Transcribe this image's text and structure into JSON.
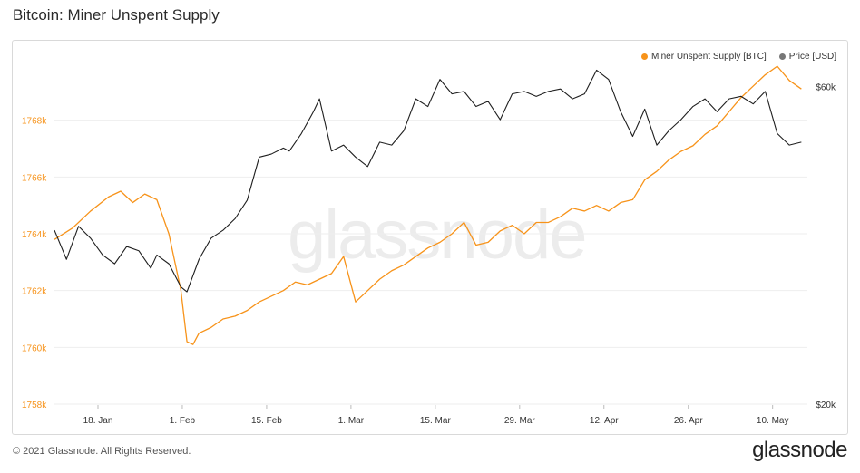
{
  "header": {
    "title": "Bitcoin: Miner Unspent Supply"
  },
  "footer": {
    "copyright": "© 2021 Glassnode. All Rights Reserved.",
    "logo": "glassnode"
  },
  "watermark": "glassnode",
  "colors": {
    "supply": "#f7931a",
    "price": "#1f1f1f",
    "grid": "#eeeeee"
  },
  "chart_data": {
    "type": "line",
    "title": "Bitcoin: Miner Unspent Supply",
    "x_ticks": [
      "18. Jan",
      "1. Feb",
      "15. Feb",
      "1. Mar",
      "15. Mar",
      "29. Mar",
      "12. Apr",
      "26. Apr",
      "10. May"
    ],
    "x_range_days": [
      0,
      125
    ],
    "y_left": {
      "ticks": [
        "1758k",
        "1760k",
        "1762k",
        "1764k",
        "1766k",
        "1768k"
      ],
      "range": [
        1758000,
        1770000
      ]
    },
    "y_right": {
      "ticks": [
        "$20k",
        "$60k"
      ],
      "range": [
        20000,
        65000
      ],
      "scale": "log"
    },
    "legend": {
      "placement": "top-right"
    },
    "series": [
      {
        "name": "Miner Unspent Supply [BTC]",
        "axis": "left",
        "color": "#f7931a",
        "x": [
          0,
          3,
          6,
          9,
          11,
          13,
          15,
          17,
          19,
          21,
          22,
          23,
          24,
          26,
          28,
          30,
          32,
          34,
          36,
          38,
          40,
          42,
          44,
          46,
          48,
          50,
          52,
          54,
          56,
          58,
          60,
          62,
          64,
          66,
          68,
          70,
          72,
          74,
          76,
          78,
          80,
          82,
          84,
          86,
          88,
          90,
          92,
          94,
          96,
          98,
          100,
          102,
          104,
          106,
          108,
          110,
          112,
          114,
          116,
          118,
          120,
          122,
          124
        ],
        "values": [
          1763800,
          1764200,
          1764800,
          1765300,
          1765500,
          1765100,
          1765400,
          1765200,
          1764000,
          1762000,
          1760200,
          1760100,
          1760500,
          1760700,
          1761000,
          1761100,
          1761300,
          1761600,
          1761800,
          1762000,
          1762300,
          1762200,
          1762400,
          1762600,
          1763200,
          1761600,
          1762000,
          1762400,
          1762700,
          1762900,
          1763200,
          1763500,
          1763700,
          1764000,
          1764400,
          1763600,
          1763700,
          1764100,
          1764300,
          1764000,
          1764400,
          1764400,
          1764600,
          1764900,
          1764800,
          1765000,
          1764800,
          1765100,
          1765200,
          1765900,
          1766200,
          1766600,
          1766900,
          1767100,
          1767500,
          1767800,
          1768300,
          1768800,
          1769200,
          1769600,
          1769900,
          1769400,
          1769100
        ]
      },
      {
        "name": "Price [USD]",
        "axis": "right",
        "color": "#1f1f1f",
        "x": [
          0,
          2,
          4,
          6,
          8,
          10,
          12,
          14,
          16,
          17,
          19,
          21,
          22,
          24,
          26,
          28,
          30,
          32,
          34,
          36,
          38,
          39,
          41,
          43,
          44,
          46,
          48,
          50,
          52,
          54,
          56,
          58,
          60,
          62,
          64,
          66,
          68,
          70,
          72,
          74,
          76,
          78,
          80,
          82,
          84,
          86,
          88,
          90,
          92,
          94,
          96,
          98,
          100,
          102,
          104,
          106,
          108,
          110,
          112,
          114,
          116,
          118,
          120,
          122,
          124
        ],
        "values": [
          36500,
          33000,
          37000,
          35500,
          33500,
          32500,
          34500,
          34000,
          32000,
          33500,
          32500,
          30000,
          29500,
          33000,
          35500,
          36500,
          38000,
          40500,
          47000,
          47500,
          48500,
          48000,
          51000,
          55000,
          57500,
          48000,
          49000,
          47000,
          45500,
          49500,
          49000,
          51500,
          57500,
          56000,
          61500,
          58500,
          59000,
          56000,
          57000,
          53500,
          58500,
          59000,
          58000,
          59000,
          59500,
          57500,
          58500,
          63500,
          61500,
          55000,
          50500,
          55500,
          49000,
          51500,
          53500,
          56000,
          57500,
          55000,
          57500,
          58000,
          56500,
          59000,
          51000,
          49000,
          49500
        ]
      }
    ]
  }
}
